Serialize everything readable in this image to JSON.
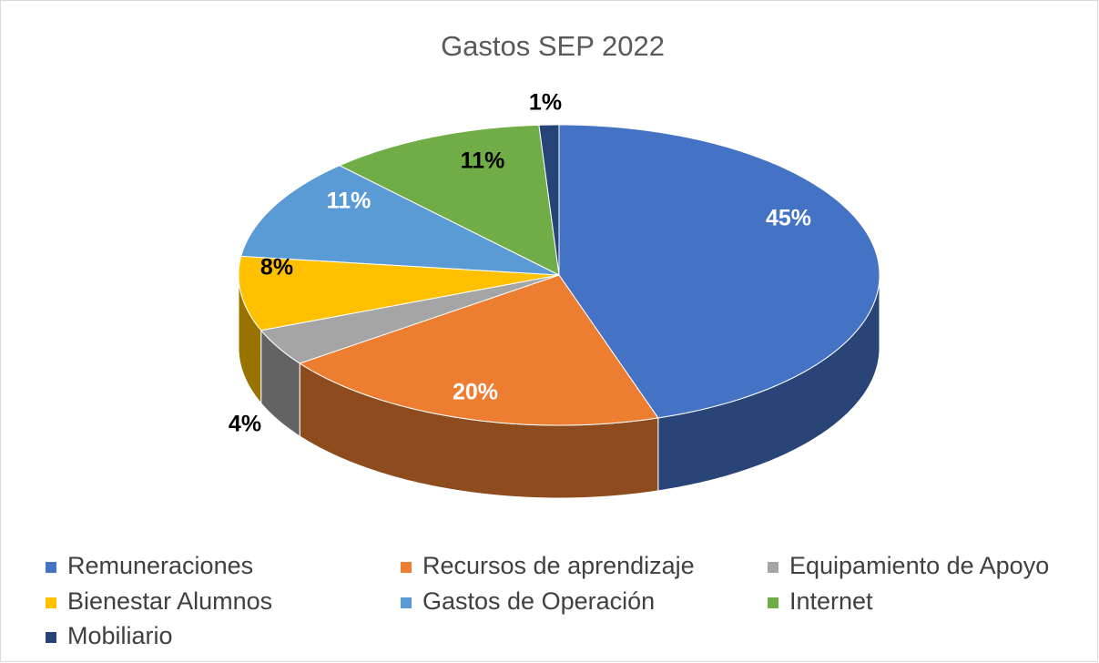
{
  "chart_data": {
    "type": "pie3d",
    "title": "Gastos SEP 2022",
    "categories": [
      "Remuneraciones",
      "Recursos de aprendizaje",
      "Equipamiento de Apoyo",
      "Bienestar Alumnos",
      "Gastos de Operación",
      "Internet",
      "Mobiliario"
    ],
    "values": [
      45,
      20,
      4,
      8,
      11,
      11,
      1
    ],
    "value_labels": [
      "45%",
      "20%",
      "4%",
      "8%",
      "11%",
      "11%",
      "1%"
    ],
    "colors": [
      "#4472c4",
      "#ed7d31",
      "#a5a5a5",
      "#ffc000",
      "#5b9bd5",
      "#70ad47",
      "#264478"
    ],
    "legend": "bottom"
  }
}
